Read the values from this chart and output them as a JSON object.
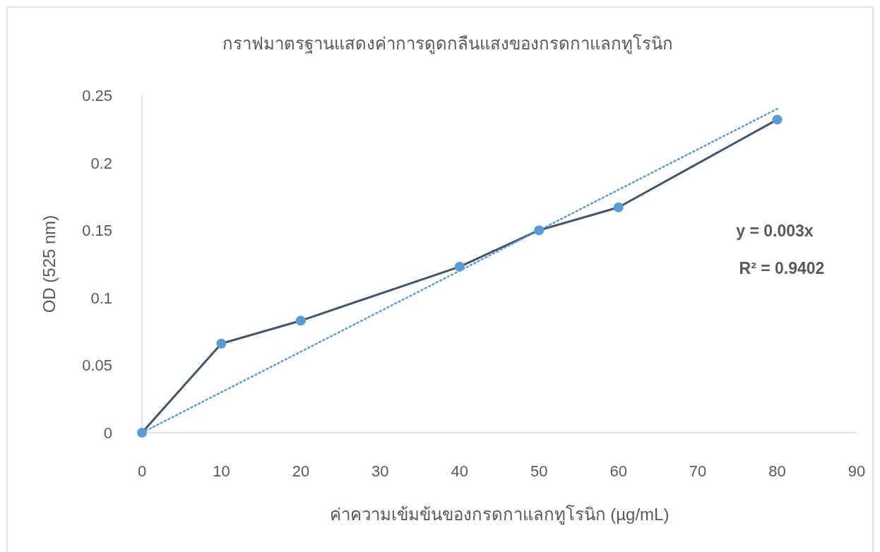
{
  "chart_data": {
    "type": "line",
    "title": "กราฟมาตรฐานแสดงค่าการดูดกลืนแสงของกรดกาแลกทูโรนิก",
    "xlabel": "ค่าความเข้มข้นของกรดกาแลกทูโรนิก (µg/mL)",
    "ylabel": "OD (525 nm)",
    "x": [
      0,
      10,
      20,
      40,
      50,
      60,
      80
    ],
    "series": [
      {
        "color": "#5b9bd5",
        "marker": "circle",
        "line_style": "solid",
        "values": [
          0,
          0.066,
          0.083,
          0.123,
          0.15,
          0.167,
          0.232
        ]
      },
      {
        "color": "#5b9bd5",
        "marker": "none",
        "line_style": "dotted",
        "x": [
          0,
          80
        ],
        "values": [
          0,
          0.24
        ]
      }
    ],
    "xlim": [
      0,
      90
    ],
    "xticks": [
      0,
      10,
      20,
      30,
      40,
      50,
      60,
      70,
      80,
      90
    ],
    "ylim": [
      0,
      0.25
    ],
    "yticks": [
      0,
      0.05,
      0.1,
      0.15,
      0.2,
      0.25
    ],
    "grid": false,
    "annotations": [
      "y = 0.003x",
      "R² = 0.9402"
    ]
  }
}
